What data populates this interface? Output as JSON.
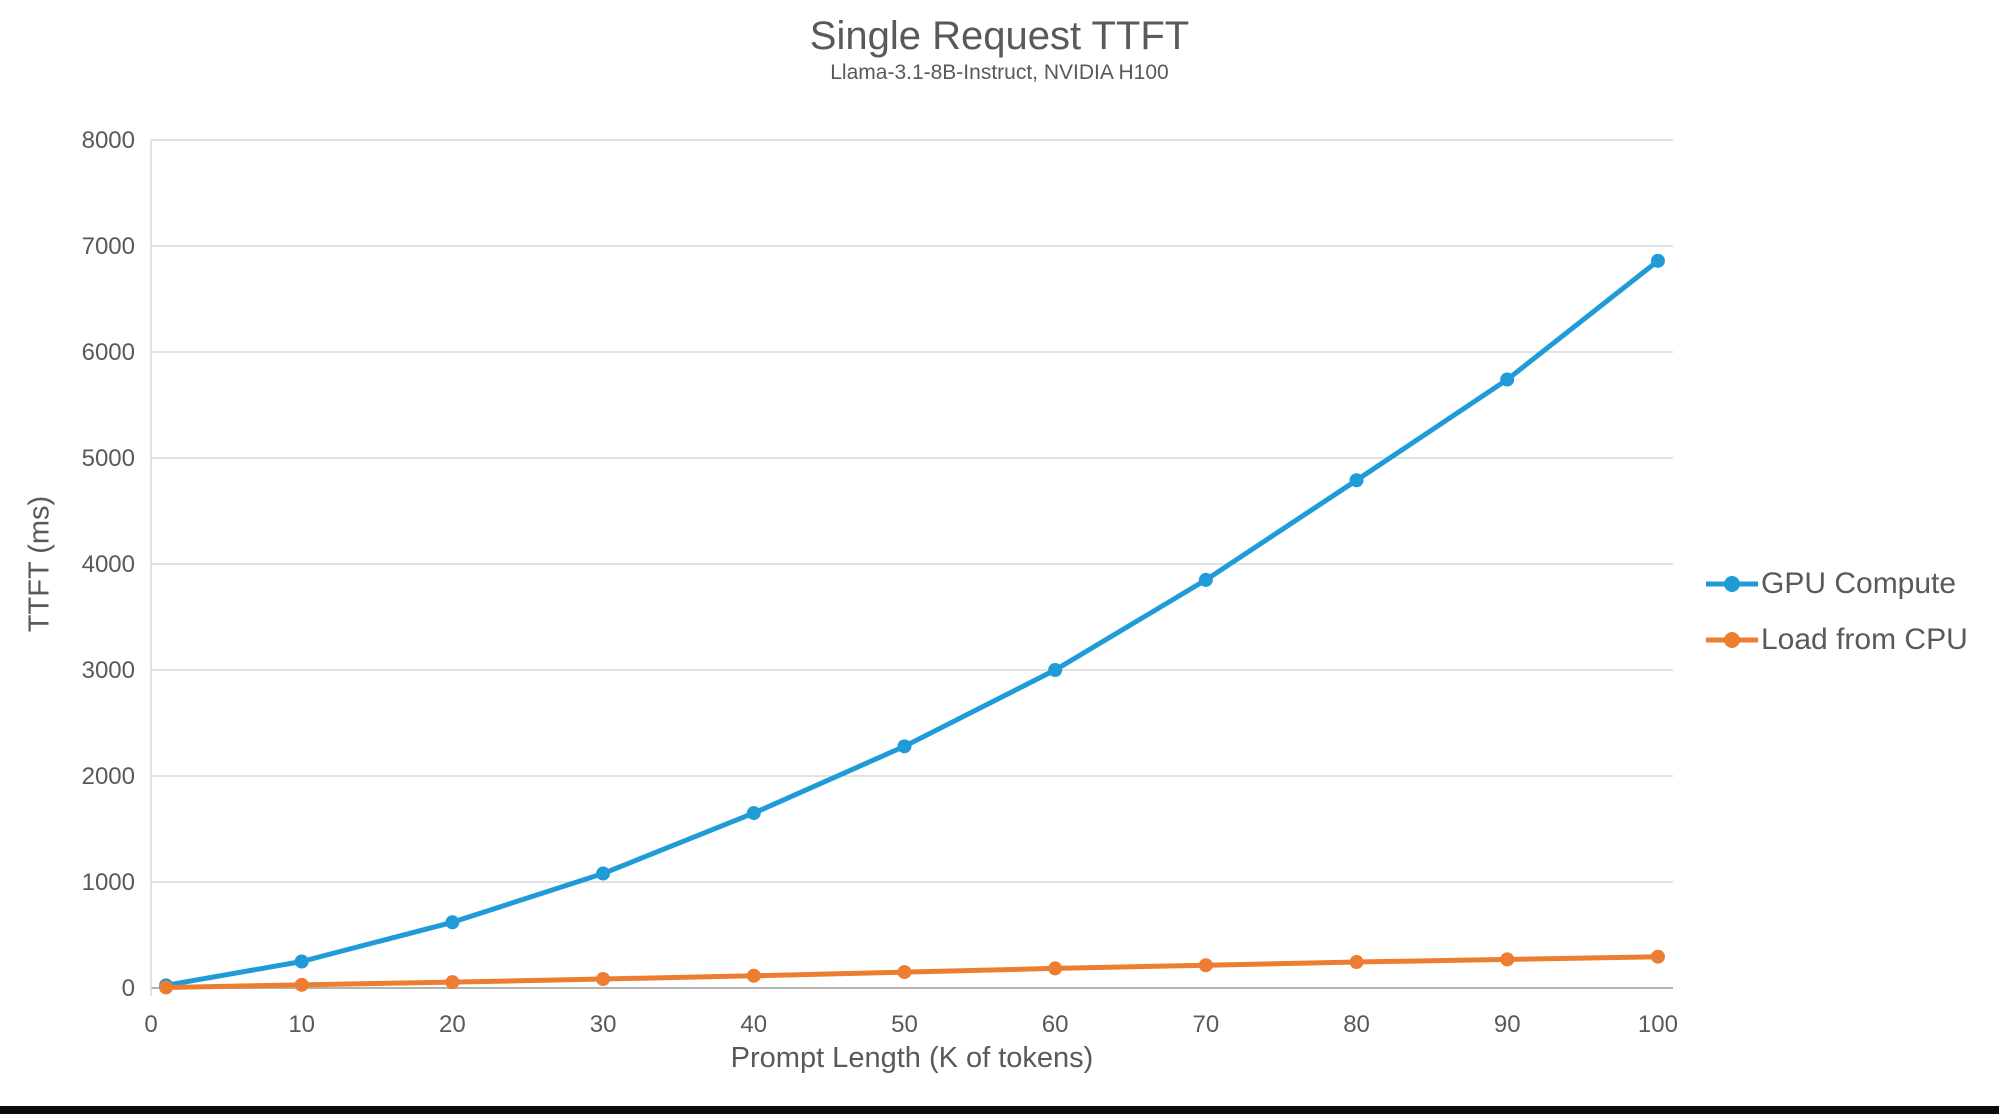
{
  "chart_data": {
    "type": "line",
    "title": "Single Request TTFT",
    "subtitle": "Llama-3.1-8B-Instruct, NVIDIA H100",
    "xlabel": "Prompt Length (K of tokens)",
    "ylabel": "TTFT (ms)",
    "x": [
      1,
      10,
      20,
      30,
      40,
      50,
      60,
      70,
      80,
      90,
      100
    ],
    "series": [
      {
        "name": "GPU Compute",
        "color": "#1f9bd7",
        "values": [
          25,
          250,
          620,
          1080,
          1650,
          2280,
          3000,
          3850,
          4790,
          5740,
          6860
        ]
      },
      {
        "name": "Load from CPU",
        "color": "#ed7d31",
        "values": [
          5,
          30,
          55,
          85,
          115,
          150,
          185,
          215,
          245,
          270,
          295
        ]
      }
    ],
    "xlim": [
      0,
      101
    ],
    "ylim": [
      0,
      8000
    ],
    "x_ticks": [
      0,
      10,
      20,
      30,
      40,
      50,
      60,
      70,
      80,
      90,
      100
    ],
    "y_ticks": [
      0,
      1000,
      2000,
      3000,
      4000,
      5000,
      6000,
      7000,
      8000
    ],
    "grid": "horizontal",
    "legend_position": "right",
    "colors": {
      "grid": "#d9d9d9",
      "axis": "#b3b3b3",
      "tick_text": "#595959",
      "title_text": "#595959"
    }
  },
  "page": {
    "background": "#ffffff",
    "bottom_bar_color": "#0a0a0a"
  }
}
